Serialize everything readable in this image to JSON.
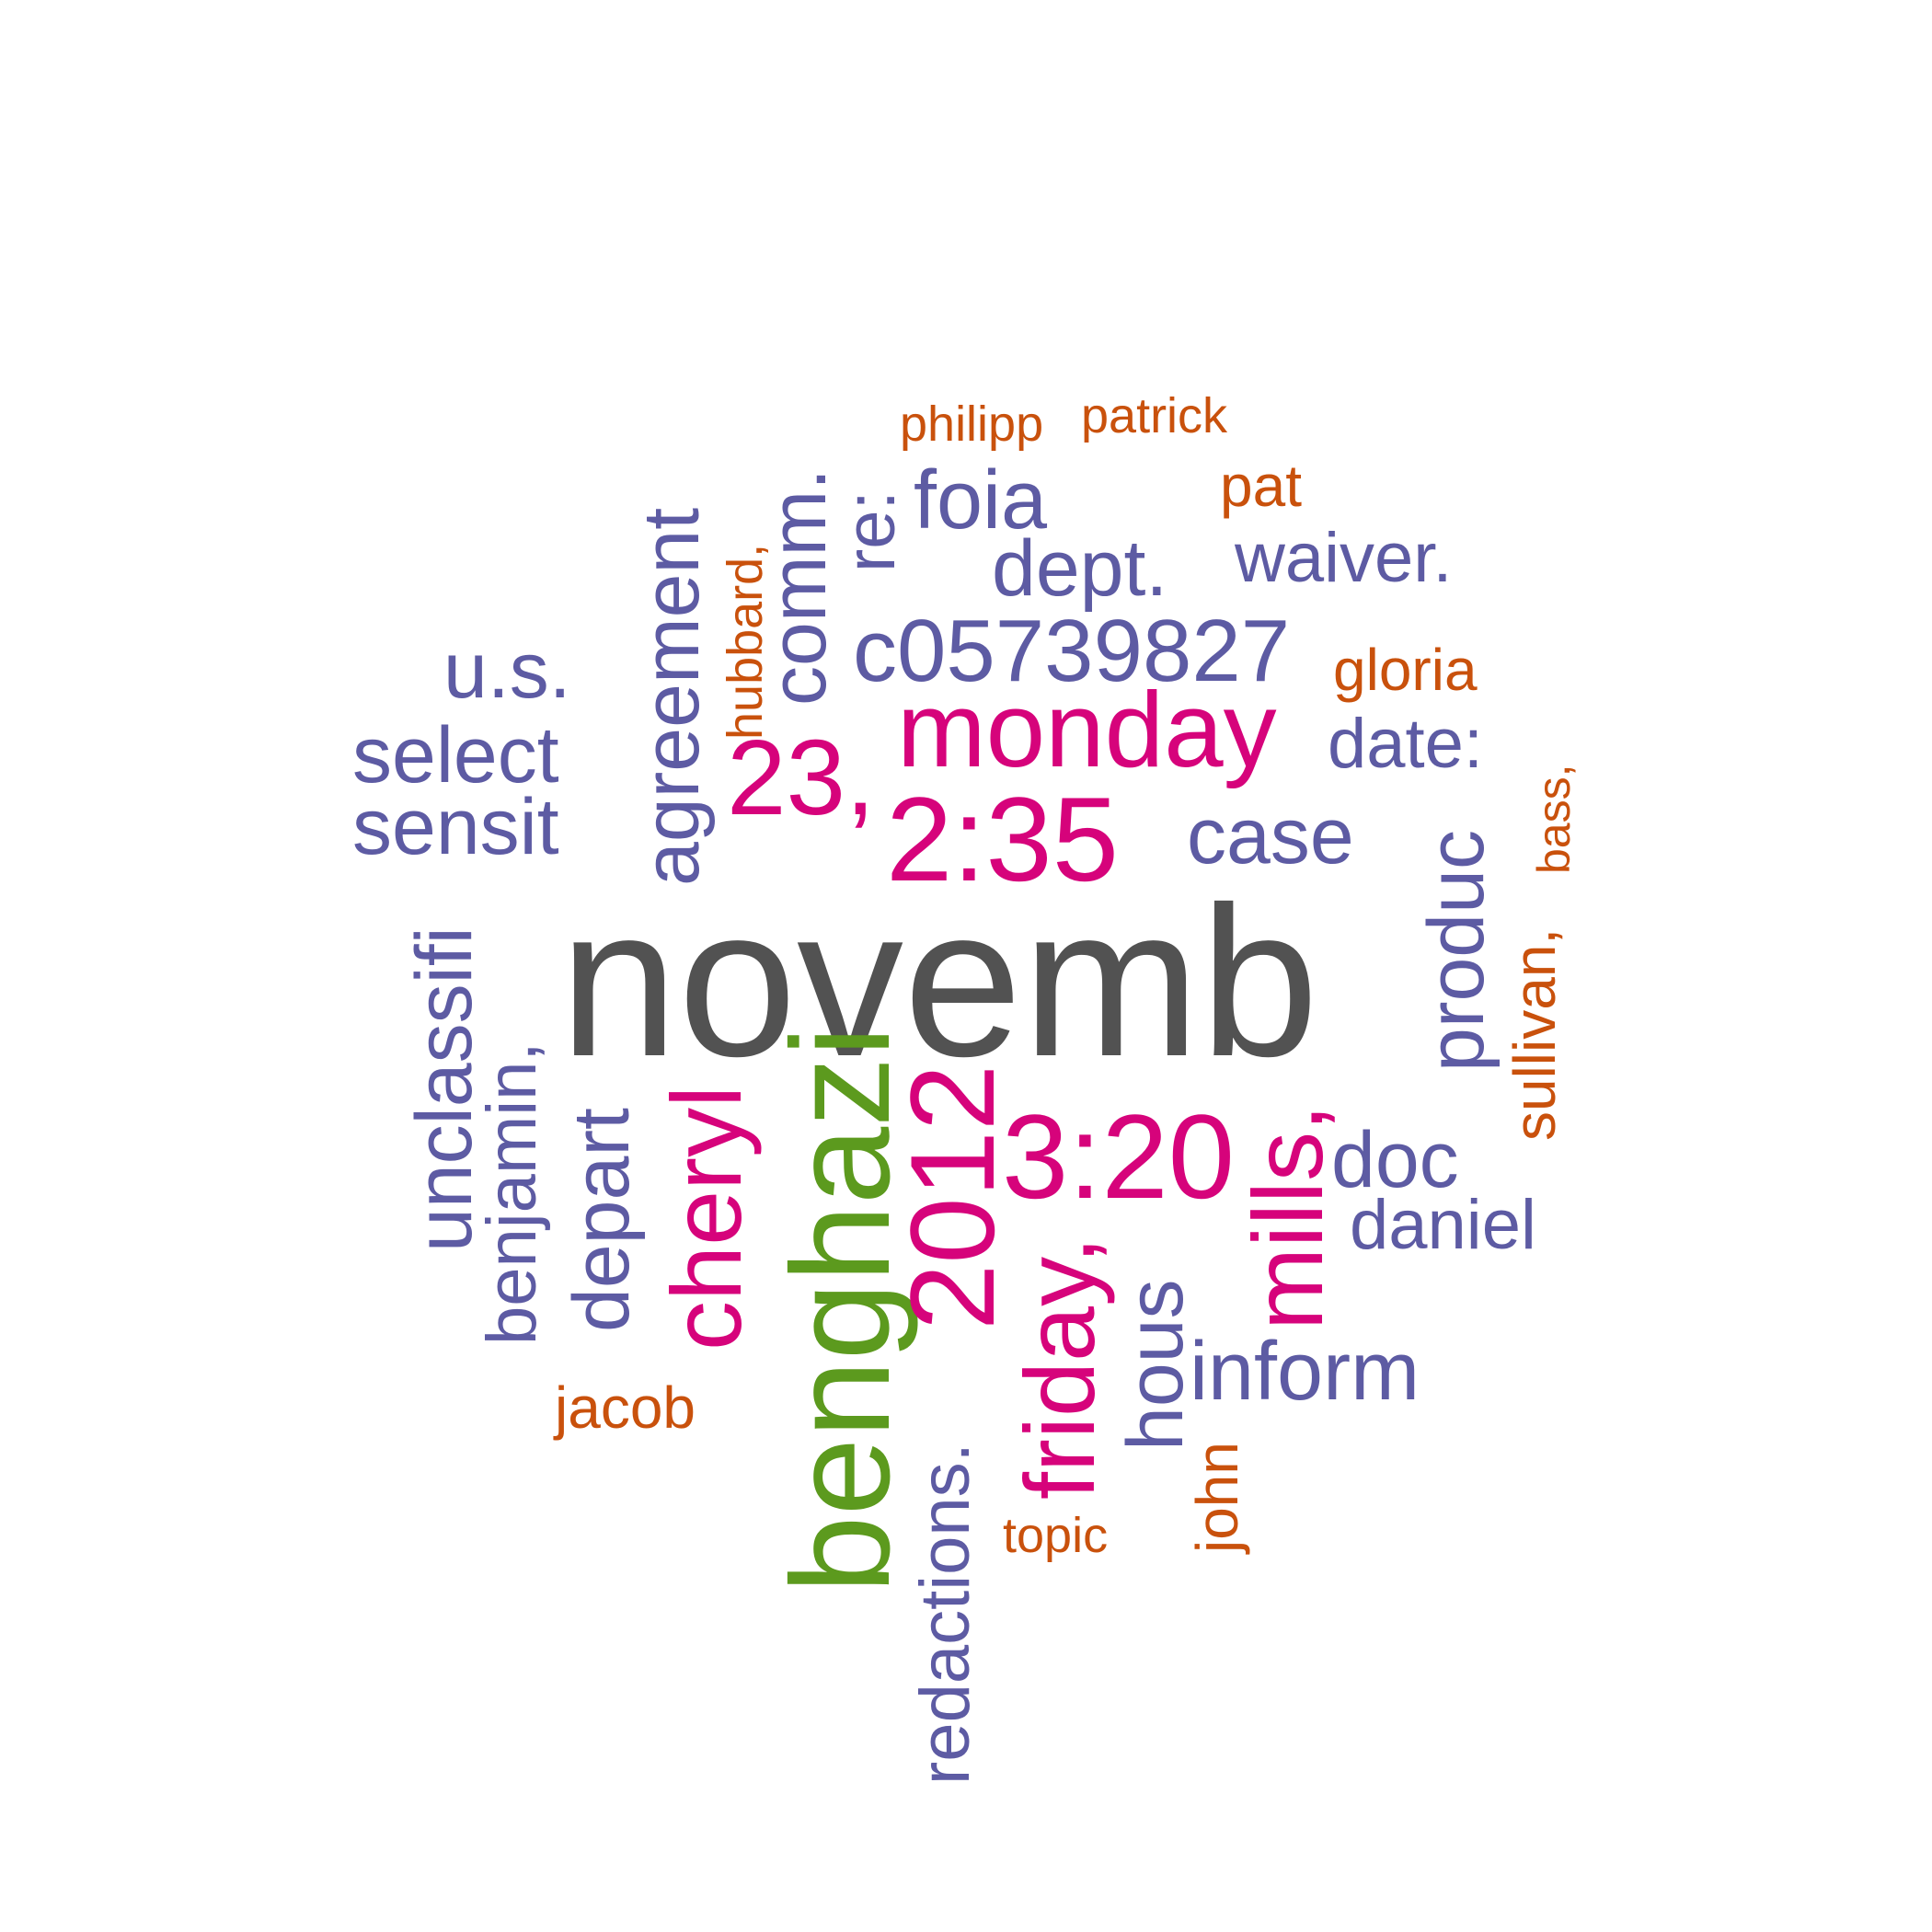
{
  "colors": {
    "grey": "#525252",
    "green": "#5c9a1e",
    "magenta": "#d6037b",
    "purple": "#5d5ba3",
    "orange": "#c9510c"
  },
  "words": [
    {
      "text": "novemb",
      "color": "grey"
    },
    {
      "text": "benghazi",
      "color": "green"
    },
    {
      "text": "monday",
      "color": "magenta"
    },
    {
      "text": "2:35",
      "color": "magenta"
    },
    {
      "text": "23,",
      "color": "magenta"
    },
    {
      "text": "2012",
      "color": "magenta"
    },
    {
      "text": "3:20",
      "color": "magenta"
    },
    {
      "text": "cheryl",
      "color": "magenta"
    },
    {
      "text": "friday,",
      "color": "magenta"
    },
    {
      "text": "mills,",
      "color": "magenta"
    },
    {
      "text": "c05739827",
      "color": "purple"
    },
    {
      "text": "foia",
      "color": "purple"
    },
    {
      "text": "dept.",
      "color": "purple"
    },
    {
      "text": "waiver.",
      "color": "purple"
    },
    {
      "text": "u.s.",
      "color": "purple"
    },
    {
      "text": "select",
      "color": "purple"
    },
    {
      "text": "sensit",
      "color": "purple"
    },
    {
      "text": "date:",
      "color": "purple"
    },
    {
      "text": "case",
      "color": "purple"
    },
    {
      "text": "doc",
      "color": "purple"
    },
    {
      "text": "daniel",
      "color": "purple"
    },
    {
      "text": "inform",
      "color": "purple"
    },
    {
      "text": "agreement",
      "color": "purple"
    },
    {
      "text": "comm.",
      "color": "purple"
    },
    {
      "text": "re:",
      "color": "purple"
    },
    {
      "text": "unclassifi",
      "color": "purple"
    },
    {
      "text": "benjamin,",
      "color": "purple"
    },
    {
      "text": "depart",
      "color": "purple"
    },
    {
      "text": "produc",
      "color": "purple"
    },
    {
      "text": "hous",
      "color": "purple"
    },
    {
      "text": "redactions.",
      "color": "purple"
    },
    {
      "text": "philipp",
      "color": "orange"
    },
    {
      "text": "patrick",
      "color": "orange"
    },
    {
      "text": "pat",
      "color": "orange"
    },
    {
      "text": "gloria",
      "color": "orange"
    },
    {
      "text": "jacob",
      "color": "orange"
    },
    {
      "text": "topic",
      "color": "orange"
    },
    {
      "text": "hubbard,",
      "color": "orange"
    },
    {
      "text": "bass,",
      "color": "orange"
    },
    {
      "text": "sullivan,",
      "color": "orange"
    },
    {
      "text": "john",
      "color": "orange"
    }
  ]
}
